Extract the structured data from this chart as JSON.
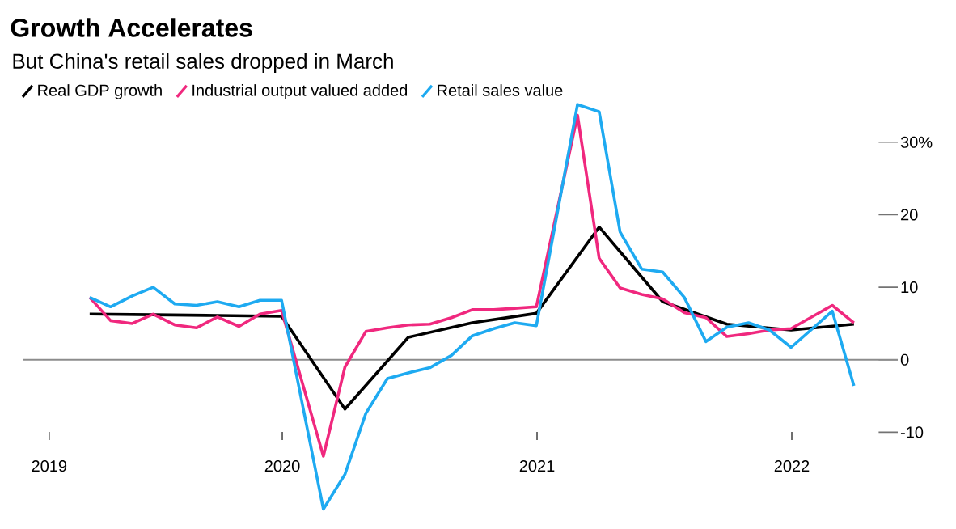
{
  "chart_data": {
    "type": "line",
    "title": "Growth Accelerates",
    "subtitle": "But China's retail sales dropped in March",
    "series": [
      {
        "name": "Real GDP growth",
        "color": "#000000",
        "x": [
          "2019-03-31",
          "2019-06-30",
          "2019-09-30",
          "2019-12-31",
          "2020-03-31",
          "2020-06-30",
          "2020-09-30",
          "2020-12-31",
          "2021-03-31",
          "2021-06-30",
          "2021-09-30",
          "2021-12-31",
          "2022-03-31"
        ],
        "values": [
          6.3,
          6.2,
          6.1,
          6.0,
          -6.8,
          3.1,
          5.1,
          6.4,
          18.3,
          8.0,
          4.9,
          4.1,
          4.9
        ]
      },
      {
        "name": "Industrial output valued added",
        "color": "#f0287e",
        "x": [
          "2019-03-31",
          "2019-04-30",
          "2019-05-31",
          "2019-06-30",
          "2019-07-31",
          "2019-08-31",
          "2019-09-30",
          "2019-10-31",
          "2019-11-30",
          "2019-12-31",
          "2020-02-29",
          "2020-03-31",
          "2020-04-30",
          "2020-05-31",
          "2020-06-30",
          "2020-07-31",
          "2020-08-31",
          "2020-09-30",
          "2020-10-31",
          "2020-11-30",
          "2020-12-31",
          "2021-02-28",
          "2021-03-31",
          "2021-04-30",
          "2021-05-31",
          "2021-06-30",
          "2021-07-31",
          "2021-08-31",
          "2021-09-30",
          "2021-10-31",
          "2021-11-30",
          "2021-12-31",
          "2022-02-28",
          "2022-03-31"
        ],
        "values": [
          8.6,
          5.4,
          5.0,
          6.3,
          4.8,
          4.4,
          5.9,
          4.6,
          6.3,
          6.8,
          -13.3,
          -1.0,
          3.9,
          4.4,
          4.8,
          4.9,
          5.8,
          6.9,
          6.9,
          7.1,
          7.3,
          33.7,
          14.0,
          9.9,
          9.0,
          8.4,
          6.5,
          5.8,
          3.2,
          3.6,
          4.1,
          4.3,
          7.5,
          5.1
        ]
      },
      {
        "name": "Retail sales value",
        "color": "#1eaaf1",
        "x": [
          "2019-03-31",
          "2019-04-30",
          "2019-05-31",
          "2019-06-30",
          "2019-07-31",
          "2019-08-31",
          "2019-09-30",
          "2019-10-31",
          "2019-11-30",
          "2019-12-31",
          "2020-02-29",
          "2020-03-31",
          "2020-04-30",
          "2020-05-31",
          "2020-06-30",
          "2020-07-31",
          "2020-08-31",
          "2020-09-30",
          "2020-10-31",
          "2020-11-30",
          "2020-12-31",
          "2021-02-28",
          "2021-03-31",
          "2021-04-30",
          "2021-05-31",
          "2021-06-30",
          "2021-07-31",
          "2021-08-31",
          "2021-09-30",
          "2021-10-31",
          "2021-11-30",
          "2021-12-31",
          "2022-02-28",
          "2022-03-31"
        ],
        "values": [
          8.6,
          7.3,
          8.8,
          10.0,
          7.7,
          7.5,
          8.0,
          7.3,
          8.2,
          8.2,
          -20.6,
          -15.8,
          -7.4,
          -2.6,
          -1.8,
          -1.1,
          0.6,
          3.3,
          4.3,
          5.1,
          4.7,
          35.2,
          34.2,
          17.6,
          12.5,
          12.1,
          8.6,
          2.5,
          4.5,
          5.1,
          4.1,
          1.7,
          6.7,
          -3.6
        ]
      }
    ],
    "xlim": [
      "2018-12-25",
      "2022-05-05"
    ],
    "xticks": [
      {
        "value": "2019-02-01",
        "label": "2019"
      },
      "2020",
      "2021",
      "2022"
    ],
    "ylim": [
      -22,
      36
    ],
    "yticks": [
      -10,
      0,
      10,
      20,
      {
        "value": 30,
        "label": "30%"
      }
    ],
    "ref_lines": [
      {
        "axis": "y",
        "value": 0,
        "color": "#8c8c8c"
      }
    ],
    "legend": "top left"
  }
}
